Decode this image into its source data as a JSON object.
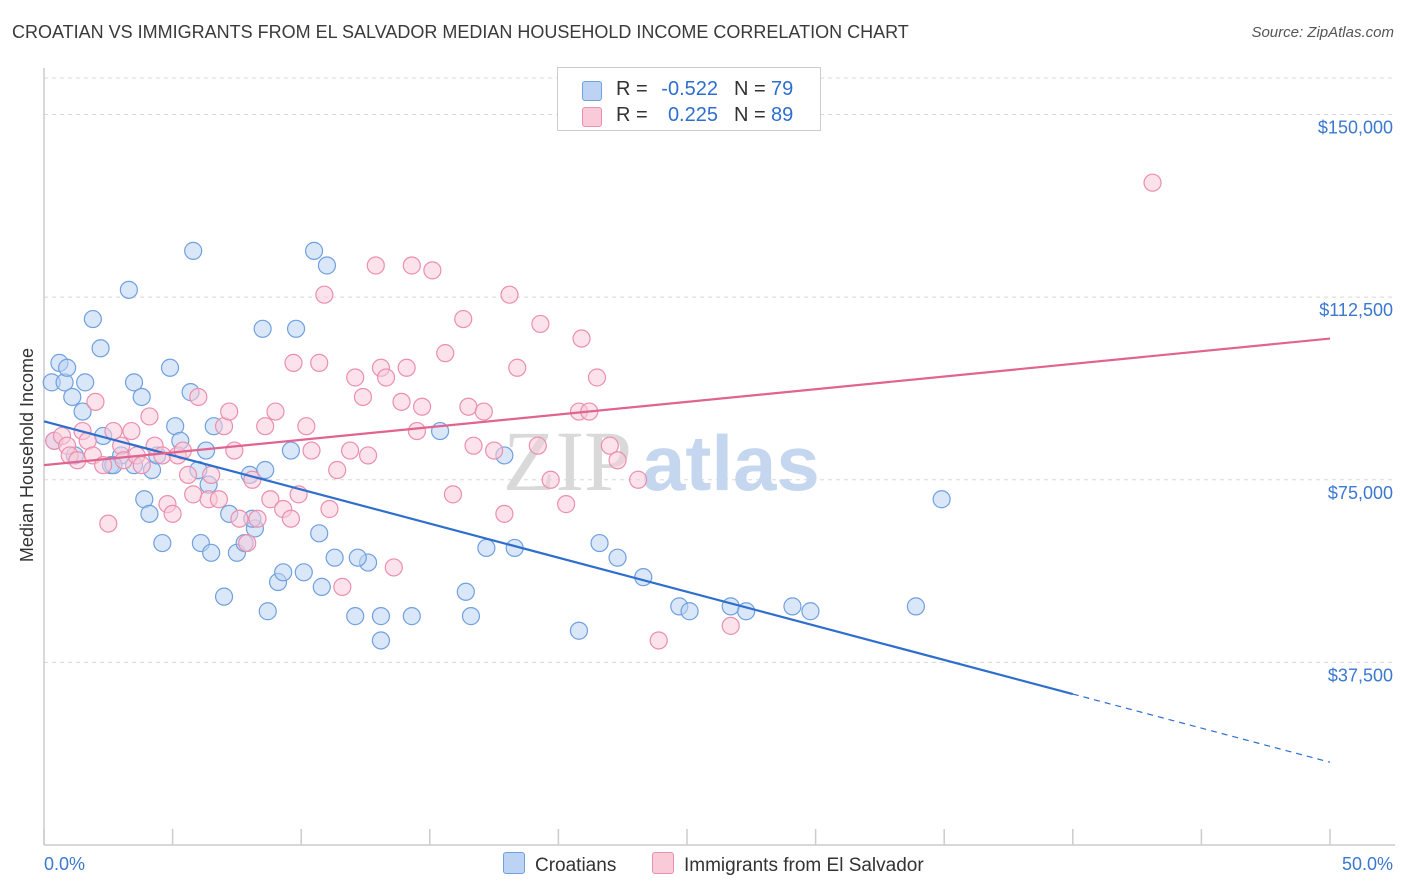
{
  "title": "CROATIAN VS IMMIGRANTS FROM EL SALVADOR MEDIAN HOUSEHOLD INCOME CORRELATION CHART",
  "source": "Source: ZipAtlas.com",
  "watermark": {
    "zip": "ZIP",
    "atlas": "atlas"
  },
  "legend": {
    "r_label": "R =",
    "n_label": "N =",
    "rows": [
      {
        "r": "-0.522",
        "n": "79",
        "color": "#6fa0e0",
        "fill": "#bcd3f3"
      },
      {
        "r": "0.225",
        "n": "89",
        "color": "#eb8fad",
        "fill": "#f9cad8"
      }
    ]
  },
  "bottom_legend": [
    {
      "label": "Croatians",
      "fill": "#bcd3f3",
      "color": "#6fa0e0"
    },
    {
      "label": "Immigrants from El Salvador",
      "fill": "#f9cad8",
      "color": "#eb8fad"
    }
  ],
  "chart_data": {
    "type": "scatter",
    "title": "CROATIAN VS IMMIGRANTS FROM EL SALVADOR MEDIAN HOUSEHOLD INCOME CORRELATION CHART",
    "xlabel": "",
    "ylabel": "Median Household Income",
    "xlim": [
      0,
      50
    ],
    "ylim": [
      0,
      157500
    ],
    "x_tick_labels": [
      "0.0%",
      "50.0%"
    ],
    "y_ticks": [
      37500,
      75000,
      112500,
      150000
    ],
    "y_tick_labels": [
      "$37,500",
      "$75,000",
      "$112,500",
      "$150,000"
    ],
    "grid": true,
    "legend_position": "top-center",
    "series": [
      {
        "name": "Croatians",
        "color": "#6fa0e0",
        "fill": "#bcd3f3",
        "trend": {
          "x0": 0,
          "y0": 87000,
          "x1": 40,
          "y1": 31000,
          "dash_to_x": 50,
          "dash_to_y": 17000,
          "color": "#2e6fce"
        },
        "points": [
          [
            0.3,
            95
          ],
          [
            0.6,
            99
          ],
          [
            0.8,
            95
          ],
          [
            0.9,
            98
          ],
          [
            1.1,
            92
          ],
          [
            1.5,
            89
          ],
          [
            1.2,
            80
          ],
          [
            1.6,
            95
          ],
          [
            1.9,
            108
          ],
          [
            2.3,
            84
          ],
          [
            2.2,
            102
          ],
          [
            2.6,
            78
          ],
          [
            3.0,
            80
          ],
          [
            3.3,
            114
          ],
          [
            3.5,
            95
          ],
          [
            3.8,
            92
          ],
          [
            3.5,
            78
          ],
          [
            3.9,
            71
          ],
          [
            4.1,
            68
          ],
          [
            4.2,
            77
          ],
          [
            4.4,
            80
          ],
          [
            4.6,
            62
          ],
          [
            4.9,
            98
          ],
          [
            5.1,
            86
          ],
          [
            5.3,
            83
          ],
          [
            5.7,
            93
          ],
          [
            5.8,
            122
          ],
          [
            6.0,
            77
          ],
          [
            6.3,
            81
          ],
          [
            6.1,
            62
          ],
          [
            6.5,
            60
          ],
          [
            6.4,
            74
          ],
          [
            6.6,
            86
          ],
          [
            7.0,
            51
          ],
          [
            7.2,
            68
          ],
          [
            7.5,
            60
          ],
          [
            7.8,
            62
          ],
          [
            8.0,
            76
          ],
          [
            8.2,
            65
          ],
          [
            8.1,
            67
          ],
          [
            8.5,
            106
          ],
          [
            8.6,
            77
          ],
          [
            8.7,
            48
          ],
          [
            9.1,
            54
          ],
          [
            9.3,
            56
          ],
          [
            9.6,
            81
          ],
          [
            9.8,
            106
          ],
          [
            10.1,
            56
          ],
          [
            10.5,
            122
          ],
          [
            10.7,
            64
          ],
          [
            10.8,
            53
          ],
          [
            11.0,
            119
          ],
          [
            11.3,
            59
          ],
          [
            12.6,
            58
          ],
          [
            12.1,
            47
          ],
          [
            12.2,
            59
          ],
          [
            13.1,
            42
          ],
          [
            13.1,
            47
          ],
          [
            14.3,
            47
          ],
          [
            15.4,
            85
          ],
          [
            16.4,
            52
          ],
          [
            16.6,
            47
          ],
          [
            17.2,
            61
          ],
          [
            17.9,
            80
          ],
          [
            18.3,
            61
          ],
          [
            20.8,
            44
          ],
          [
            21.6,
            62
          ],
          [
            22.3,
            59
          ],
          [
            23.3,
            55
          ],
          [
            24.7,
            49
          ],
          [
            25.1,
            48
          ],
          [
            26.7,
            49
          ],
          [
            27.3,
            48
          ],
          [
            29.1,
            49
          ],
          [
            29.8,
            48
          ],
          [
            33.9,
            49
          ],
          [
            34.9,
            71
          ],
          [
            0.4,
            83
          ],
          [
            2.7,
            78
          ]
        ]
      },
      {
        "name": "Immigrants from El Salvador",
        "color": "#eb8fad",
        "fill": "#f9cad8",
        "trend": {
          "x0": 0,
          "y0": 78000,
          "x1": 50,
          "y1": 104000,
          "color": "#e0648f"
        },
        "points": [
          [
            0.4,
            83
          ],
          [
            0.7,
            84
          ],
          [
            0.9,
            82
          ],
          [
            1.0,
            80
          ],
          [
            1.3,
            79
          ],
          [
            1.5,
            85
          ],
          [
            1.7,
            83
          ],
          [
            1.9,
            80
          ],
          [
            2.0,
            91
          ],
          [
            2.3,
            78
          ],
          [
            2.5,
            66
          ],
          [
            2.7,
            85
          ],
          [
            3.0,
            82
          ],
          [
            3.1,
            79
          ],
          [
            3.4,
            85
          ],
          [
            3.6,
            80
          ],
          [
            3.8,
            78
          ],
          [
            4.1,
            88
          ],
          [
            4.3,
            82
          ],
          [
            4.6,
            80
          ],
          [
            4.8,
            70
          ],
          [
            5.0,
            68
          ],
          [
            5.2,
            80
          ],
          [
            5.4,
            81
          ],
          [
            5.6,
            76
          ],
          [
            5.8,
            72
          ],
          [
            6.0,
            92
          ],
          [
            6.4,
            71
          ],
          [
            6.5,
            76
          ],
          [
            6.8,
            71
          ],
          [
            7.0,
            86
          ],
          [
            7.2,
            89
          ],
          [
            7.4,
            81
          ],
          [
            7.6,
            67
          ],
          [
            7.9,
            62
          ],
          [
            8.1,
            75
          ],
          [
            8.3,
            67
          ],
          [
            8.6,
            86
          ],
          [
            8.8,
            71
          ],
          [
            9.0,
            89
          ],
          [
            9.3,
            69
          ],
          [
            9.6,
            67
          ],
          [
            9.7,
            99
          ],
          [
            9.9,
            72
          ],
          [
            10.2,
            86
          ],
          [
            10.4,
            81
          ],
          [
            10.7,
            99
          ],
          [
            10.9,
            113
          ],
          [
            11.1,
            69
          ],
          [
            11.4,
            77
          ],
          [
            11.6,
            53
          ],
          [
            11.9,
            81
          ],
          [
            12.1,
            96
          ],
          [
            12.4,
            92
          ],
          [
            12.6,
            80
          ],
          [
            12.9,
            119
          ],
          [
            13.1,
            98
          ],
          [
            13.3,
            96
          ],
          [
            13.6,
            57
          ],
          [
            13.9,
            91
          ],
          [
            14.1,
            98
          ],
          [
            14.3,
            119
          ],
          [
            14.5,
            85
          ],
          [
            14.7,
            90
          ],
          [
            15.1,
            118
          ],
          [
            15.6,
            101
          ],
          [
            15.9,
            72
          ],
          [
            16.3,
            108
          ],
          [
            16.5,
            90
          ],
          [
            16.7,
            82
          ],
          [
            17.1,
            89
          ],
          [
            17.5,
            81
          ],
          [
            17.9,
            68
          ],
          [
            18.1,
            113
          ],
          [
            18.4,
            98
          ],
          [
            19.2,
            82
          ],
          [
            19.3,
            107
          ],
          [
            19.7,
            75
          ],
          [
            20.3,
            70
          ],
          [
            20.8,
            89
          ],
          [
            20.9,
            104
          ],
          [
            21.2,
            89
          ],
          [
            21.5,
            96
          ],
          [
            22.0,
            82
          ],
          [
            22.3,
            79
          ],
          [
            23.1,
            75
          ],
          [
            23.9,
            42
          ],
          [
            26.7,
            45
          ],
          [
            43.1,
            136
          ]
        ]
      }
    ],
    "y_point_unit": "thousands of USD"
  }
}
